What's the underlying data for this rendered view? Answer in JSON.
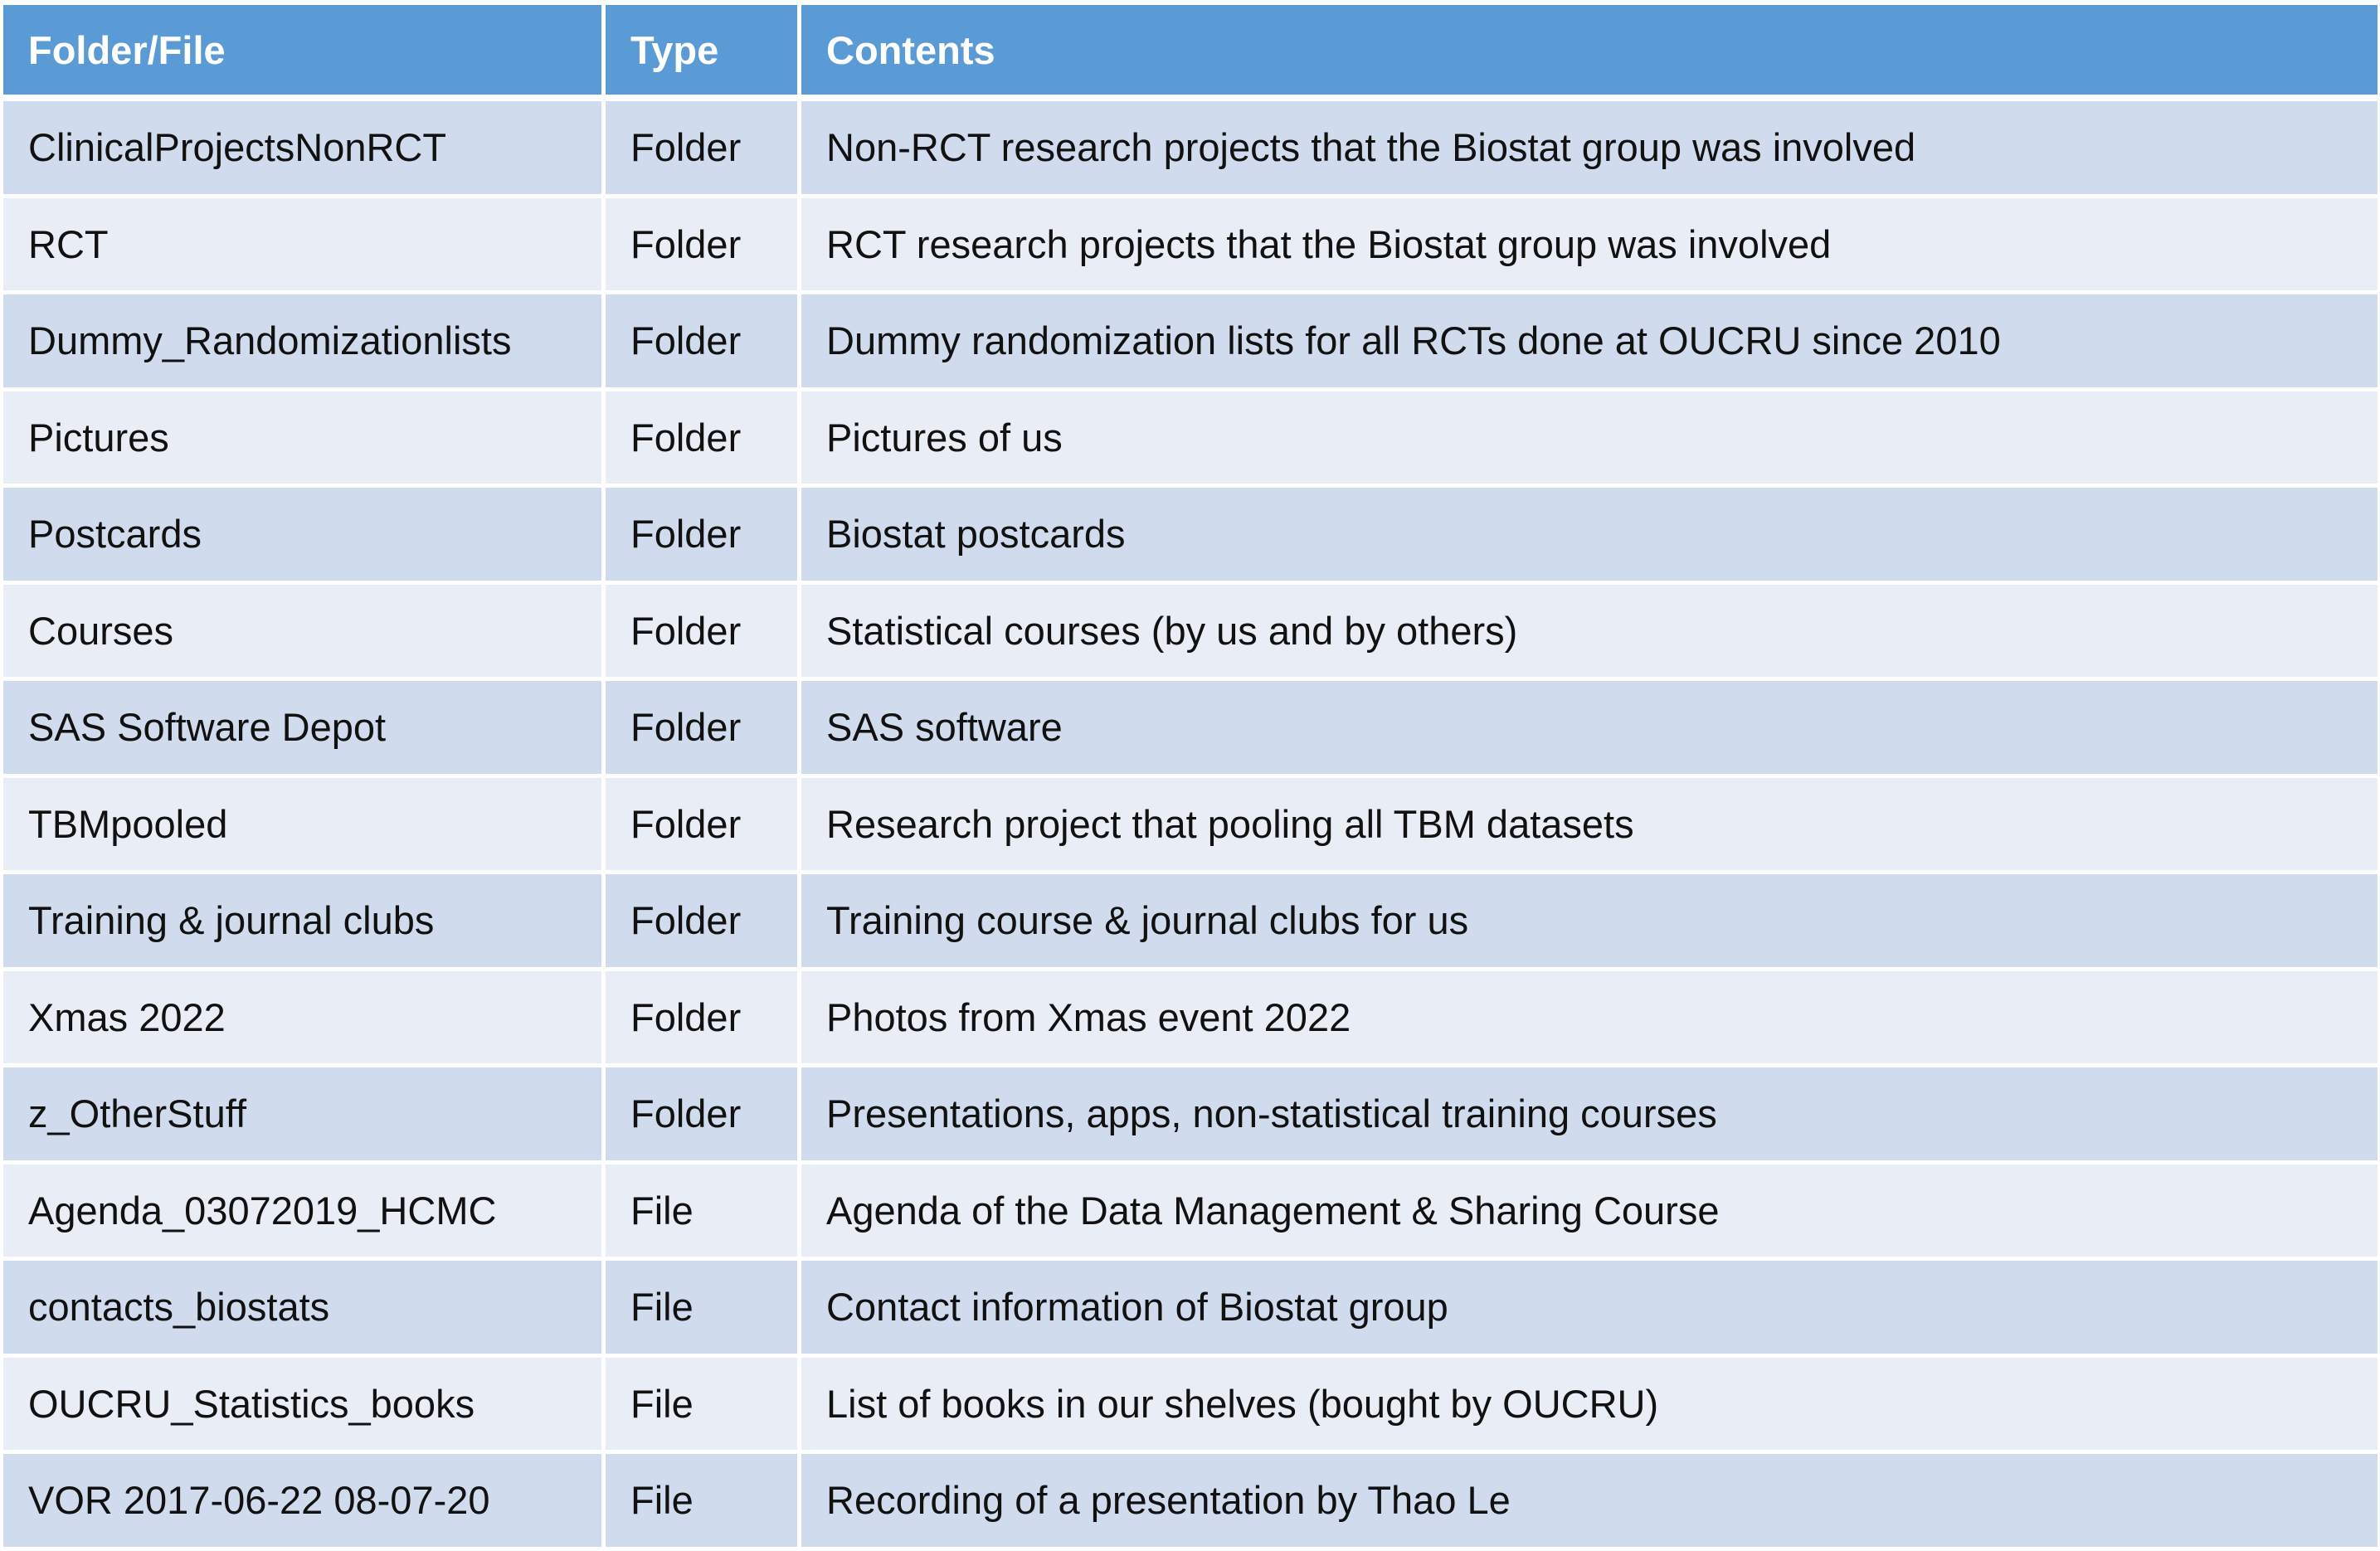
{
  "table": {
    "headers": {
      "name": "Folder/File",
      "type": "Type",
      "contents": "Contents"
    },
    "rows": [
      {
        "name": "ClinicalProjectsNonRCT",
        "type": "Folder",
        "contents": "Non-RCT research projects that the Biostat group was involved"
      },
      {
        "name": "RCT",
        "type": "Folder",
        "contents": "RCT research projects that the Biostat group was involved"
      },
      {
        "name": "Dummy_Randomizationlists",
        "type": "Folder",
        "contents": "Dummy randomization lists for all RCTs done at OUCRU since 2010"
      },
      {
        "name": "Pictures",
        "type": "Folder",
        "contents": "Pictures of us"
      },
      {
        "name": "Postcards",
        "type": "Folder",
        "contents": "Biostat postcards"
      },
      {
        "name": "Courses",
        "type": "Folder",
        "contents": "Statistical courses (by us and by others)"
      },
      {
        "name": "SAS Software Depot",
        "type": "Folder",
        "contents": "SAS software"
      },
      {
        "name": "TBMpooled",
        "type": "Folder",
        "contents": "Research project that pooling all TBM datasets"
      },
      {
        "name": "Training & journal clubs",
        "type": "Folder",
        "contents": "Training course & journal clubs for us"
      },
      {
        "name": "Xmas 2022",
        "type": "Folder",
        "contents": "Photos from Xmas event 2022"
      },
      {
        "name": "z_OtherStuff",
        "type": "Folder",
        "contents": "Presentations, apps, non-statistical training courses"
      },
      {
        "name": "Agenda_03072019_HCMC",
        "type": "File",
        "contents": "Agenda of the Data Management & Sharing Course"
      },
      {
        "name": "contacts_biostats",
        "type": "File",
        "contents": "Contact information of Biostat group"
      },
      {
        "name": "OUCRU_Statistics_books",
        "type": "File",
        "contents": "List of books in our shelves (bought by OUCRU)"
      },
      {
        "name": "VOR 2017-06-22 08-07-20",
        "type": "File",
        "contents": "Recording of a presentation by Thao Le"
      }
    ]
  },
  "colors": {
    "header_bg": "#5b9bd5",
    "row_odd_bg": "#d0dbee",
    "row_even_bg": "#e9edf6"
  }
}
